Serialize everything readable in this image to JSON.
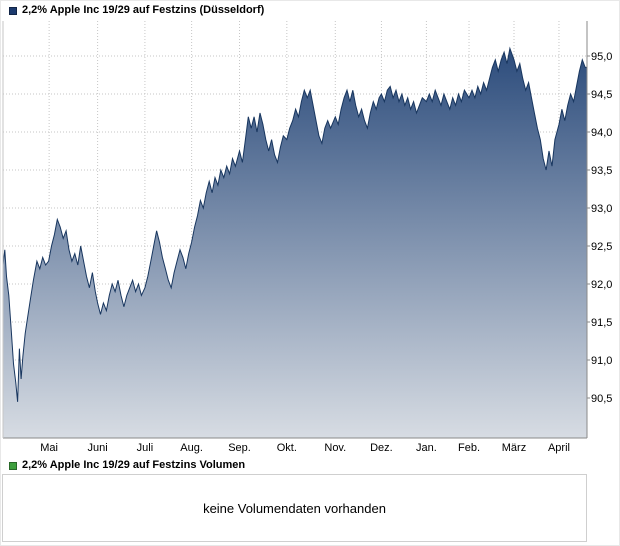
{
  "price_chart": {
    "legend": {
      "label": "2,2% Apple Inc 19/29 auf Festzins (Düsseldorf)",
      "swatch_color": "#1c3a6e"
    },
    "line_color": "#18365f",
    "fill_top": "#2c4c7c",
    "fill_bottom": "#d7dce3",
    "grid_color": "#c6c6c6",
    "axis_color": "#8a8a8a",
    "label_color": "#000000"
  },
  "volume_panel": {
    "legend": {
      "label": "2,2% Apple Inc 19/29 auf Festzins Volumen",
      "swatch_color": "#3fa03f"
    },
    "message": "keine Volumendaten vorhanden"
  },
  "chart_data": {
    "type": "area",
    "title": "2,2% Apple Inc 19/29 auf Festzins (Düsseldorf)",
    "xlabel": "",
    "ylabel": "",
    "ylim": [
      90.0,
      95.25
    ],
    "grid": true,
    "legend_position": "top-left",
    "yticks": [
      {
        "v": 95.0,
        "label": "95,0"
      },
      {
        "v": 94.5,
        "label": "94,5"
      },
      {
        "v": 94.0,
        "label": "94,0"
      },
      {
        "v": 93.5,
        "label": "93,5"
      },
      {
        "v": 93.0,
        "label": "93,0"
      },
      {
        "v": 92.5,
        "label": "92,5"
      },
      {
        "v": 92.0,
        "label": "92,0"
      },
      {
        "v": 91.5,
        "label": "91,5"
      },
      {
        "v": 91.0,
        "label": "91,0"
      },
      {
        "v": 90.5,
        "label": "90,5"
      }
    ],
    "xticks": [
      {
        "f": 0.079,
        "label": "Mai"
      },
      {
        "f": 0.162,
        "label": "Juni"
      },
      {
        "f": 0.243,
        "label": "Juli"
      },
      {
        "f": 0.323,
        "label": "Aug."
      },
      {
        "f": 0.405,
        "label": "Sep."
      },
      {
        "f": 0.486,
        "label": "Okt."
      },
      {
        "f": 0.569,
        "label": "Nov."
      },
      {
        "f": 0.648,
        "label": "Dez."
      },
      {
        "f": 0.725,
        "label": "Jan."
      },
      {
        "f": 0.798,
        "label": "Feb."
      },
      {
        "f": 0.875,
        "label": "März"
      },
      {
        "f": 0.952,
        "label": "April"
      }
    ],
    "series": [
      {
        "name": "2,2% Apple Inc 19/29 auf Festzins (Düsseldorf)",
        "color": "#18365f",
        "points": [
          [
            0.0,
            92.25
          ],
          [
            0.003,
            92.45
          ],
          [
            0.006,
            92.1
          ],
          [
            0.01,
            91.85
          ],
          [
            0.014,
            91.4
          ],
          [
            0.018,
            90.95
          ],
          [
            0.022,
            90.7
          ],
          [
            0.025,
            90.45
          ],
          [
            0.028,
            91.15
          ],
          [
            0.031,
            90.75
          ],
          [
            0.034,
            91.05
          ],
          [
            0.038,
            91.35
          ],
          [
            0.042,
            91.55
          ],
          [
            0.047,
            91.8
          ],
          [
            0.052,
            92.05
          ],
          [
            0.058,
            92.3
          ],
          [
            0.063,
            92.2
          ],
          [
            0.068,
            92.35
          ],
          [
            0.073,
            92.25
          ],
          [
            0.078,
            92.3
          ],
          [
            0.083,
            92.5
          ],
          [
            0.088,
            92.65
          ],
          [
            0.093,
            92.85
          ],
          [
            0.098,
            92.75
          ],
          [
            0.103,
            92.6
          ],
          [
            0.108,
            92.7
          ],
          [
            0.113,
            92.45
          ],
          [
            0.118,
            92.3
          ],
          [
            0.123,
            92.4
          ],
          [
            0.128,
            92.25
          ],
          [
            0.133,
            92.5
          ],
          [
            0.138,
            92.3
          ],
          [
            0.143,
            92.1
          ],
          [
            0.148,
            91.95
          ],
          [
            0.153,
            92.15
          ],
          [
            0.158,
            91.9
          ],
          [
            0.162,
            91.75
          ],
          [
            0.167,
            91.6
          ],
          [
            0.172,
            91.75
          ],
          [
            0.177,
            91.65
          ],
          [
            0.182,
            91.85
          ],
          [
            0.187,
            92.0
          ],
          [
            0.192,
            91.9
          ],
          [
            0.197,
            92.05
          ],
          [
            0.202,
            91.85
          ],
          [
            0.207,
            91.7
          ],
          [
            0.212,
            91.85
          ],
          [
            0.217,
            91.95
          ],
          [
            0.222,
            92.05
          ],
          [
            0.227,
            91.9
          ],
          [
            0.232,
            92.0
          ],
          [
            0.237,
            91.85
          ],
          [
            0.243,
            91.95
          ],
          [
            0.248,
            92.1
          ],
          [
            0.253,
            92.3
          ],
          [
            0.258,
            92.5
          ],
          [
            0.263,
            92.7
          ],
          [
            0.268,
            92.55
          ],
          [
            0.273,
            92.35
          ],
          [
            0.278,
            92.2
          ],
          [
            0.283,
            92.05
          ],
          [
            0.288,
            91.95
          ],
          [
            0.293,
            92.15
          ],
          [
            0.298,
            92.3
          ],
          [
            0.303,
            92.45
          ],
          [
            0.308,
            92.35
          ],
          [
            0.313,
            92.2
          ],
          [
            0.318,
            92.4
          ],
          [
            0.323,
            92.55
          ],
          [
            0.328,
            92.75
          ],
          [
            0.333,
            92.9
          ],
          [
            0.338,
            93.1
          ],
          [
            0.343,
            93.0
          ],
          [
            0.348,
            93.2
          ],
          [
            0.353,
            93.35
          ],
          [
            0.358,
            93.2
          ],
          [
            0.363,
            93.4
          ],
          [
            0.368,
            93.3
          ],
          [
            0.373,
            93.5
          ],
          [
            0.378,
            93.4
          ],
          [
            0.383,
            93.55
          ],
          [
            0.388,
            93.45
          ],
          [
            0.393,
            93.65
          ],
          [
            0.398,
            93.55
          ],
          [
            0.405,
            93.75
          ],
          [
            0.41,
            93.6
          ],
          [
            0.415,
            93.9
          ],
          [
            0.42,
            94.2
          ],
          [
            0.425,
            94.05
          ],
          [
            0.43,
            94.2
          ],
          [
            0.435,
            94.0
          ],
          [
            0.44,
            94.25
          ],
          [
            0.445,
            94.1
          ],
          [
            0.45,
            93.9
          ],
          [
            0.455,
            93.75
          ],
          [
            0.46,
            93.9
          ],
          [
            0.465,
            93.7
          ],
          [
            0.47,
            93.6
          ],
          [
            0.475,
            93.8
          ],
          [
            0.48,
            93.95
          ],
          [
            0.486,
            93.9
          ],
          [
            0.491,
            94.05
          ],
          [
            0.496,
            94.15
          ],
          [
            0.501,
            94.3
          ],
          [
            0.506,
            94.2
          ],
          [
            0.511,
            94.4
          ],
          [
            0.516,
            94.55
          ],
          [
            0.521,
            94.45
          ],
          [
            0.526,
            94.55
          ],
          [
            0.531,
            94.35
          ],
          [
            0.536,
            94.15
          ],
          [
            0.541,
            93.95
          ],
          [
            0.546,
            93.85
          ],
          [
            0.551,
            94.05
          ],
          [
            0.556,
            94.15
          ],
          [
            0.561,
            94.05
          ],
          [
            0.569,
            94.2
          ],
          [
            0.574,
            94.1
          ],
          [
            0.579,
            94.3
          ],
          [
            0.584,
            94.45
          ],
          [
            0.589,
            94.55
          ],
          [
            0.594,
            94.4
          ],
          [
            0.599,
            94.55
          ],
          [
            0.604,
            94.35
          ],
          [
            0.609,
            94.2
          ],
          [
            0.614,
            94.3
          ],
          [
            0.619,
            94.15
          ],
          [
            0.624,
            94.05
          ],
          [
            0.629,
            94.25
          ],
          [
            0.634,
            94.4
          ],
          [
            0.639,
            94.3
          ],
          [
            0.644,
            94.45
          ],
          [
            0.648,
            94.5
          ],
          [
            0.653,
            94.4
          ],
          [
            0.658,
            94.55
          ],
          [
            0.663,
            94.6
          ],
          [
            0.668,
            94.45
          ],
          [
            0.673,
            94.55
          ],
          [
            0.678,
            94.4
          ],
          [
            0.683,
            94.5
          ],
          [
            0.688,
            94.35
          ],
          [
            0.693,
            94.45
          ],
          [
            0.698,
            94.3
          ],
          [
            0.703,
            94.4
          ],
          [
            0.708,
            94.25
          ],
          [
            0.713,
            94.35
          ],
          [
            0.718,
            94.45
          ],
          [
            0.725,
            94.4
          ],
          [
            0.73,
            94.5
          ],
          [
            0.735,
            94.4
          ],
          [
            0.74,
            94.55
          ],
          [
            0.745,
            94.45
          ],
          [
            0.75,
            94.35
          ],
          [
            0.755,
            94.5
          ],
          [
            0.76,
            94.4
          ],
          [
            0.765,
            94.3
          ],
          [
            0.77,
            94.45
          ],
          [
            0.775,
            94.35
          ],
          [
            0.78,
            94.5
          ],
          [
            0.785,
            94.4
          ],
          [
            0.79,
            94.55
          ],
          [
            0.798,
            94.45
          ],
          [
            0.803,
            94.55
          ],
          [
            0.808,
            94.45
          ],
          [
            0.813,
            94.6
          ],
          [
            0.818,
            94.5
          ],
          [
            0.823,
            94.65
          ],
          [
            0.828,
            94.55
          ],
          [
            0.833,
            94.7
          ],
          [
            0.838,
            94.85
          ],
          [
            0.843,
            94.95
          ],
          [
            0.848,
            94.8
          ],
          [
            0.853,
            94.95
          ],
          [
            0.858,
            95.05
          ],
          [
            0.863,
            94.9
          ],
          [
            0.868,
            95.1
          ],
          [
            0.875,
            94.95
          ],
          [
            0.88,
            94.8
          ],
          [
            0.885,
            94.9
          ],
          [
            0.89,
            94.7
          ],
          [
            0.895,
            94.55
          ],
          [
            0.9,
            94.65
          ],
          [
            0.905,
            94.45
          ],
          [
            0.91,
            94.25
          ],
          [
            0.915,
            94.05
          ],
          [
            0.92,
            93.9
          ],
          [
            0.925,
            93.65
          ],
          [
            0.93,
            93.5
          ],
          [
            0.935,
            93.75
          ],
          [
            0.94,
            93.55
          ],
          [
            0.945,
            93.9
          ],
          [
            0.952,
            94.1
          ],
          [
            0.957,
            94.3
          ],
          [
            0.962,
            94.15
          ],
          [
            0.967,
            94.35
          ],
          [
            0.972,
            94.5
          ],
          [
            0.977,
            94.4
          ],
          [
            0.982,
            94.6
          ],
          [
            0.987,
            94.8
          ],
          [
            0.992,
            94.95
          ],
          [
            0.997,
            94.85
          ],
          [
            1.0,
            94.85
          ]
        ]
      }
    ]
  }
}
